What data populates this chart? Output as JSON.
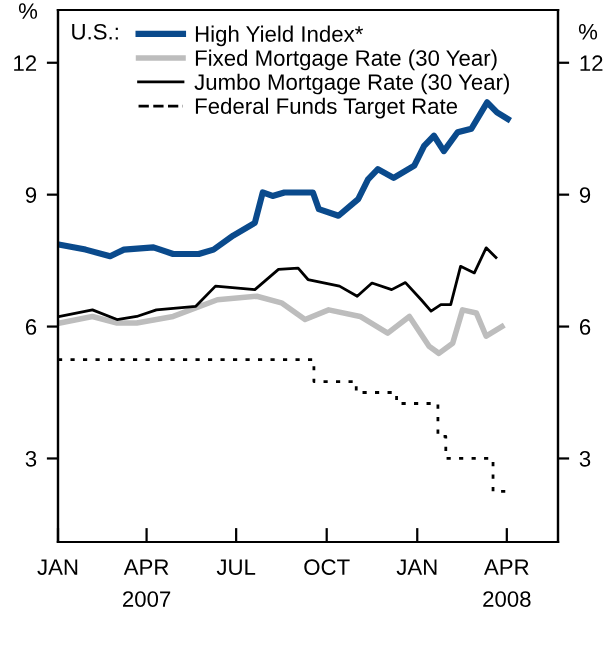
{
  "chart_data": {
    "type": "line",
    "ylabel": "%",
    "y2label": "%",
    "legend_title": "U.S.:",
    "xlim": [
      "2007-01-01",
      "2008-05-23"
    ],
    "xticks": [
      {
        "value": "2007-01-01",
        "label": "JAN"
      },
      {
        "value": "2007-04-01",
        "label": "APR\n2007"
      },
      {
        "value": "2007-07-01",
        "label": "JUL"
      },
      {
        "value": "2007-10-01",
        "label": "OCT"
      },
      {
        "value": "2008-01-01",
        "label": "JAN"
      },
      {
        "value": "2008-04-01",
        "label": "APR\n2008"
      }
    ],
    "ylim": [
      1.1,
      13.2
    ],
    "yticks": [
      3,
      6,
      9,
      12
    ],
    "y2lim": [
      1.1,
      13.2
    ],
    "y2ticks": [
      3,
      6,
      9,
      12
    ],
    "grid": false,
    "legend": "top left",
    "marker": "none",
    "series": [
      {
        "name": "High Yield Index*",
        "color": "#0a4a8c",
        "line_style": "solid",
        "x": [
          "2007-01-03",
          "2007-01-29",
          "2007-02-23",
          "2007-03-09",
          "2007-04-08",
          "2007-04-28",
          "2007-05-24",
          "2007-06-08",
          "2007-06-28",
          "2007-07-20",
          "2007-07-28",
          "2007-08-07",
          "2007-08-19",
          "2007-09-17",
          "2007-09-23",
          "2007-10-13",
          "2007-11-02",
          "2007-11-12",
          "2007-11-22",
          "2007-12-08",
          "2007-12-29",
          "2008-01-08",
          "2008-01-18",
          "2008-01-28",
          "2008-02-11",
          "2008-02-25",
          "2008-03-12",
          "2008-03-22",
          "2008-04-02"
        ],
        "values": [
          7.86,
          7.75,
          7.6,
          7.75,
          7.8,
          7.65,
          7.65,
          7.75,
          8.07,
          8.36,
          9.05,
          8.97,
          9.05,
          9.05,
          8.67,
          8.52,
          8.9,
          9.35,
          9.58,
          9.38,
          9.66,
          10.11,
          10.34,
          9.99,
          10.42,
          10.5,
          11.1,
          10.87,
          10.72
        ]
      },
      {
        "name": "Fixed Mortgage Rate (30 Year)",
        "color": "#bdbdbd",
        "line_style": "solid",
        "x": [
          "2007-01-03",
          "2007-02-05",
          "2007-03-02",
          "2007-03-22",
          "2007-04-28",
          "2007-06-12",
          "2007-07-22",
          "2007-08-16",
          "2007-09-09",
          "2007-10-03",
          "2007-11-04",
          "2007-12-02",
          "2007-12-24",
          "2008-01-13",
          "2008-01-23",
          "2008-02-06",
          "2008-02-16",
          "2008-03-01",
          "2008-03-11",
          "2008-03-27"
        ],
        "values": [
          6.08,
          6.23,
          6.08,
          6.08,
          6.23,
          6.61,
          6.69,
          6.54,
          6.16,
          6.38,
          6.23,
          5.85,
          6.23,
          5.55,
          5.39,
          5.62,
          6.38,
          6.31,
          5.78,
          6.0
        ]
      },
      {
        "name": "Jumbo Mortgage Rate (30 Year)",
        "color": "#000000",
        "line_style": "solid",
        "x": [
          "2007-01-03",
          "2007-02-05",
          "2007-03-02",
          "2007-03-22",
          "2007-04-11",
          "2007-05-21",
          "2007-06-10",
          "2007-07-20",
          "2007-08-13",
          "2007-09-02",
          "2007-09-12",
          "2007-10-14",
          "2007-11-01",
          "2007-11-16",
          "2007-12-06",
          "2007-12-20",
          "2008-01-05",
          "2008-01-15",
          "2008-01-25",
          "2008-02-04",
          "2008-02-14",
          "2008-02-28",
          "2008-03-11",
          "2008-03-21"
        ],
        "values": [
          6.23,
          6.38,
          6.16,
          6.23,
          6.38,
          6.46,
          6.92,
          6.84,
          7.3,
          7.33,
          7.07,
          6.92,
          6.69,
          6.99,
          6.84,
          7.0,
          6.61,
          6.35,
          6.5,
          6.5,
          7.37,
          7.22,
          7.79,
          7.57
        ]
      },
      {
        "name": "Federal Funds Target Rate",
        "color": "#000000",
        "type": "step",
        "line_style": "dotted",
        "x": [
          "2007-01-01",
          "2007-09-18",
          "2007-10-31",
          "2007-12-11",
          "2008-01-22",
          "2008-01-30",
          "2008-03-18",
          "2008-04-02"
        ],
        "values": [
          5.25,
          4.75,
          4.5,
          4.25,
          3.5,
          3.0,
          2.25,
          2.25
        ]
      }
    ]
  }
}
